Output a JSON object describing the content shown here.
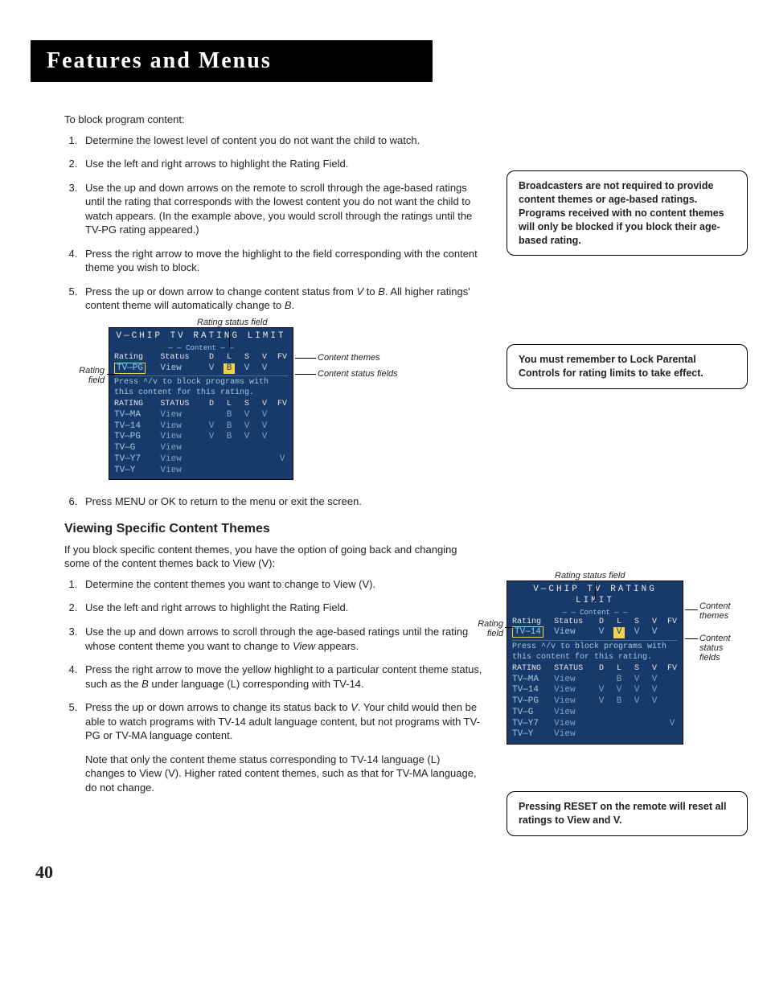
{
  "title": "Features and Menus",
  "intro": "To block program content:",
  "list1": [
    "Determine the lowest level of content you do not want the child to watch.",
    "Use the left and right arrows to highlight the Rating Field.",
    "Use the up and down arrows on the remote to scroll through the age-based ratings until the rating that corresponds with the lowest content you do not want the child to watch appears.  (In the example above, you would scroll through the ratings until the TV-PG rating appeared.)",
    "Press the right arrow to move the highlight to the field corresponding with the content theme you wish to block.",
    "Press the up or down arrow to change content status from V to B. All higher ratings' content theme will automatically change to B."
  ],
  "list1_after": "Press MENU or OK to return to the menu or exit the screen.",
  "callout1": "Broadcasters are not required to provide content themes or age-based ratings. Programs received with no content themes will only be blocked if you block their age-based rating.",
  "callout2": "You must remember to Lock Parental Controls for rating limits to take effect.",
  "section2_head": "Viewing Specific Content Themes",
  "section2_intro": "If you block specific content themes, you have the option of going back and changing some of the content themes back to View (V):",
  "list2": [
    "Determine the content themes you want to change to View (V).",
    "Use the left and right arrows to highlight the Rating Field.",
    "Use the up and down arrows to scroll through the age-based ratings until the rating whose content theme you want to change to View appears.",
    "Press the right arrow to move the yellow highlight to a particular content theme status, such as the B under language (L) corresponding with TV-14.",
    "Press the up or down arrows to change its status back to V.  Your child would then be able to watch programs with TV-14 adult language content, but not programs with  TV-PG or TV-MA language content."
  ],
  "list2_note": "Note that only the content theme status corresponding to TV-14 language (L) changes to View (V). Higher rated content themes, such as that for TV-MA language, do not change.",
  "callout3": "Pressing RESET on the remote will reset all ratings to View and V.",
  "osd_labels": {
    "rating_status_field": "Rating status field",
    "rating_field": "Rating field",
    "content_themes": "Content themes",
    "content_status_fields": "Content status fields"
  },
  "osd": {
    "title": "V—CHIP TV RATING LIMIT",
    "content_hdr": "— — Content — —",
    "header_rating": "Rating",
    "header_status": "Status",
    "cols": [
      "D",
      "L",
      "S",
      "V",
      "FV"
    ],
    "help": "Press ^/v to block programs with this content for this rating.",
    "header2_rating": "RATING",
    "header2_status": "STATUS",
    "osd1": {
      "selected_rating": "TV—PG",
      "selected_status": "View",
      "selected_row": [
        "V",
        "B",
        "V",
        "V",
        ""
      ],
      "highlight_col": 1,
      "rows": [
        {
          "rating": "TV—MA",
          "status": "View",
          "cells": [
            "",
            "B",
            "V",
            "V",
            ""
          ]
        },
        {
          "rating": "TV—14",
          "status": "View",
          "cells": [
            "V",
            "B",
            "V",
            "V",
            ""
          ]
        },
        {
          "rating": "TV—PG",
          "status": "View",
          "cells": [
            "V",
            "B",
            "V",
            "V",
            ""
          ]
        },
        {
          "rating": "TV—G",
          "status": "View",
          "cells": [
            "",
            "",
            "",
            "",
            ""
          ]
        },
        {
          "rating": "TV—Y7",
          "status": "View",
          "cells": [
            "",
            "",
            "",
            "",
            "V"
          ]
        },
        {
          "rating": "TV—Y",
          "status": "View",
          "cells": [
            "",
            "",
            "",
            "",
            ""
          ]
        }
      ]
    },
    "osd2": {
      "selected_rating": "TV—14",
      "selected_status": "View",
      "selected_row": [
        "V",
        "V",
        "V",
        "V",
        ""
      ],
      "highlight_col": 1,
      "rows": [
        {
          "rating": "TV—MA",
          "status": "View",
          "cells": [
            "",
            "B",
            "V",
            "V",
            ""
          ]
        },
        {
          "rating": "TV—14",
          "status": "View",
          "cells": [
            "V",
            "V",
            "V",
            "V",
            ""
          ]
        },
        {
          "rating": "TV—PG",
          "status": "View",
          "cells": [
            "V",
            "B",
            "V",
            "V",
            ""
          ]
        },
        {
          "rating": "TV—G",
          "status": "View",
          "cells": [
            "",
            "",
            "",
            "",
            ""
          ]
        },
        {
          "rating": "TV—Y7",
          "status": "View",
          "cells": [
            "",
            "",
            "",
            "",
            "V"
          ]
        },
        {
          "rating": "TV—Y",
          "status": "View",
          "cells": [
            "",
            "",
            "",
            "",
            ""
          ]
        }
      ]
    }
  },
  "colors": {
    "osd_bg": "#173a6b",
    "osd_text": "#a8c7dc",
    "osd_bright": "#e8e8e8",
    "highlight": "#f2d24a"
  },
  "page_number": "40"
}
